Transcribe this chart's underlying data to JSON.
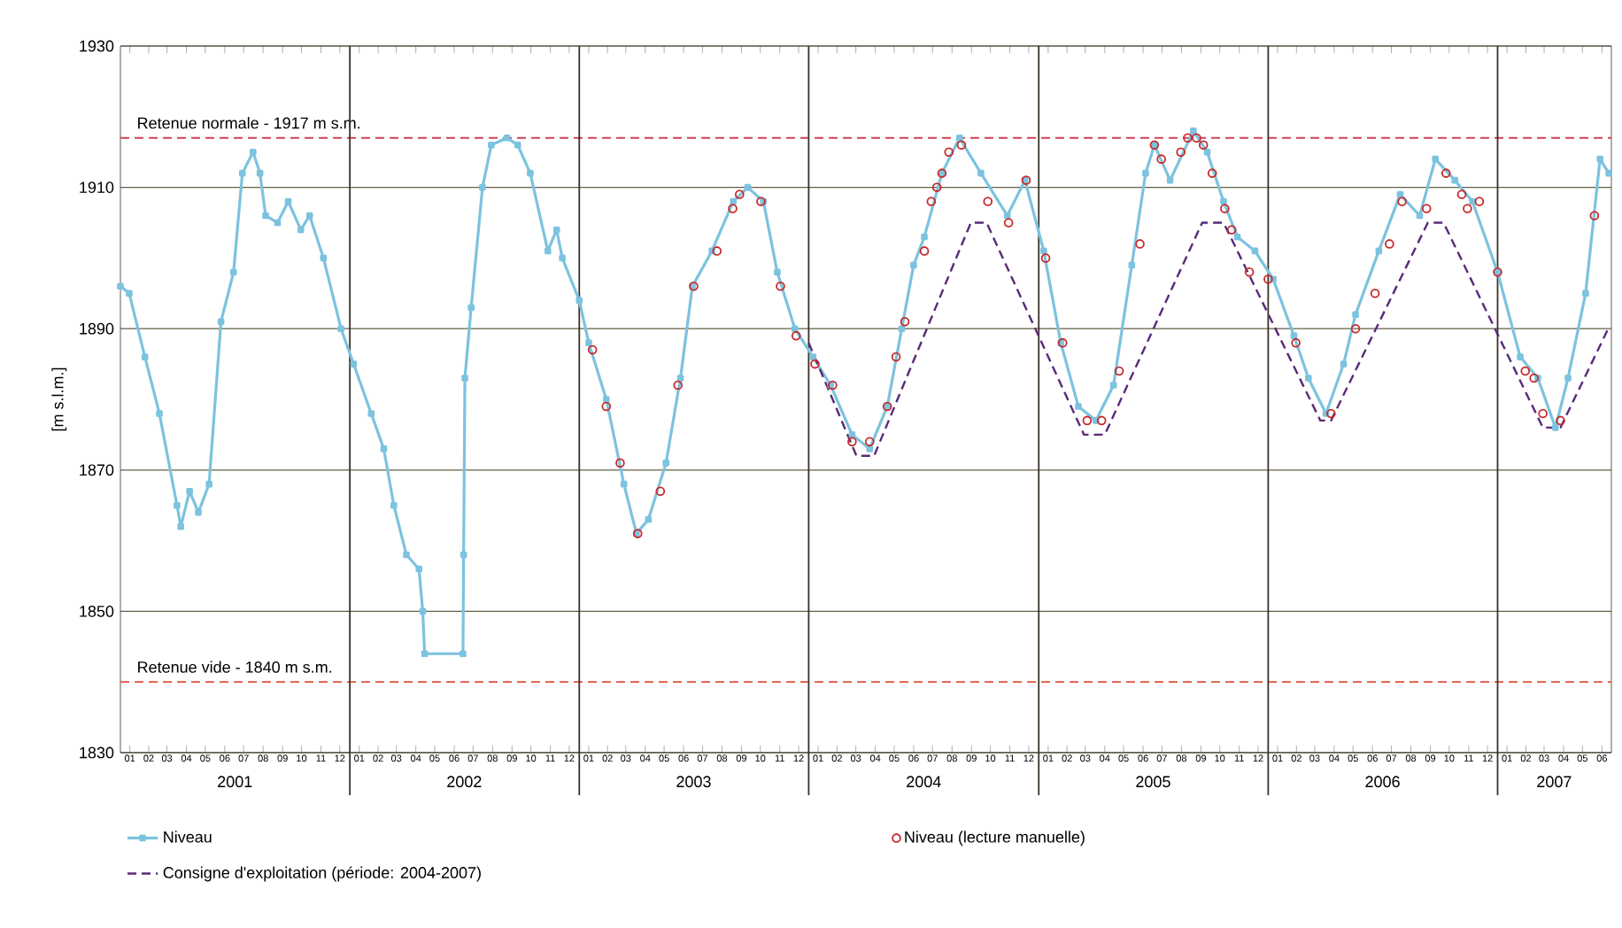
{
  "chart_data": {
    "type": "line",
    "ylabel": "[m s.l.m.]",
    "xlim": [
      "2001-01-01",
      "2007-07-01"
    ],
    "x2lim": [
      "2001-01-01",
      "2007-07-01"
    ],
    "ylim": [
      1830,
      1930
    ],
    "yticks": [
      1830,
      1850,
      1870,
      1890,
      1910,
      1930
    ],
    "xticks": [
      {
        "value": "2001-01-16",
        "label": "01"
      },
      {
        "value": "2001-02-15",
        "label": "02"
      },
      {
        "value": "2001-03-16",
        "label": "03"
      },
      {
        "value": "2001-04-16",
        "label": "04"
      },
      {
        "value": "2001-05-16",
        "label": "05"
      },
      {
        "value": "2001-06-16",
        "label": "06"
      },
      {
        "value": "2001-07-16",
        "label": "07"
      },
      {
        "value": "2001-08-16",
        "label": "08"
      },
      {
        "value": "2001-09-16",
        "label": "09"
      },
      {
        "value": "2001-10-16",
        "label": "10"
      },
      {
        "value": "2001-11-16",
        "label": "11"
      },
      {
        "value": "2001-12-16",
        "label": "12"
      },
      {
        "value": "2002-01-16",
        "label": "01"
      },
      {
        "value": "2002-02-15",
        "label": "02"
      },
      {
        "value": "2002-03-16",
        "label": "03"
      },
      {
        "value": "2002-04-16",
        "label": "04"
      },
      {
        "value": "2002-05-16",
        "label": "05"
      },
      {
        "value": "2002-06-16",
        "label": "06"
      },
      {
        "value": "2002-07-16",
        "label": "07"
      },
      {
        "value": "2002-08-16",
        "label": "08"
      },
      {
        "value": "2002-09-16",
        "label": "09"
      },
      {
        "value": "2002-10-16",
        "label": "10"
      },
      {
        "value": "2002-11-16",
        "label": "11"
      },
      {
        "value": "2002-12-16",
        "label": "12"
      },
      {
        "value": "2003-01-16",
        "label": "01"
      },
      {
        "value": "2003-02-15",
        "label": "02"
      },
      {
        "value": "2003-03-16",
        "label": "03"
      },
      {
        "value": "2003-04-16",
        "label": "04"
      },
      {
        "value": "2003-05-16",
        "label": "05"
      },
      {
        "value": "2003-06-16",
        "label": "06"
      },
      {
        "value": "2003-07-16",
        "label": "07"
      },
      {
        "value": "2003-08-16",
        "label": "08"
      },
      {
        "value": "2003-09-16",
        "label": "09"
      },
      {
        "value": "2003-10-16",
        "label": "10"
      },
      {
        "value": "2003-11-16",
        "label": "11"
      },
      {
        "value": "2003-12-16",
        "label": "12"
      },
      {
        "value": "2004-01-16",
        "label": "01"
      },
      {
        "value": "2004-02-15",
        "label": "02"
      },
      {
        "value": "2004-03-16",
        "label": "03"
      },
      {
        "value": "2004-04-16",
        "label": "04"
      },
      {
        "value": "2004-05-16",
        "label": "05"
      },
      {
        "value": "2004-06-16",
        "label": "06"
      },
      {
        "value": "2004-07-16",
        "label": "07"
      },
      {
        "value": "2004-08-16",
        "label": "08"
      },
      {
        "value": "2004-09-16",
        "label": "09"
      },
      {
        "value": "2004-10-16",
        "label": "10"
      },
      {
        "value": "2004-11-16",
        "label": "11"
      },
      {
        "value": "2004-12-16",
        "label": "12"
      },
      {
        "value": "2005-01-16",
        "label": "01"
      },
      {
        "value": "2005-02-15",
        "label": "02"
      },
      {
        "value": "2005-03-16",
        "label": "03"
      },
      {
        "value": "2005-04-16",
        "label": "04"
      },
      {
        "value": "2005-05-16",
        "label": "05"
      },
      {
        "value": "2005-06-16",
        "label": "06"
      },
      {
        "value": "2005-07-16",
        "label": "07"
      },
      {
        "value": "2005-08-16",
        "label": "08"
      },
      {
        "value": "2005-09-16",
        "label": "09"
      },
      {
        "value": "2005-10-16",
        "label": "10"
      },
      {
        "value": "2005-11-16",
        "label": "11"
      },
      {
        "value": "2005-12-16",
        "label": "12"
      },
      {
        "value": "2006-01-16",
        "label": "01"
      },
      {
        "value": "2006-02-15",
        "label": "02"
      },
      {
        "value": "2006-03-16",
        "label": "03"
      },
      {
        "value": "2006-04-16",
        "label": "04"
      },
      {
        "value": "2006-05-16",
        "label": "05"
      },
      {
        "value": "2006-06-16",
        "label": "06"
      },
      {
        "value": "2006-07-16",
        "label": "07"
      },
      {
        "value": "2006-08-16",
        "label": "08"
      },
      {
        "value": "2006-09-16",
        "label": "09"
      },
      {
        "value": "2006-10-16",
        "label": "10"
      },
      {
        "value": "2006-11-16",
        "label": "11"
      },
      {
        "value": "2006-12-16",
        "label": "12"
      },
      {
        "value": "2007-01-16",
        "label": "01"
      },
      {
        "value": "2007-02-15",
        "label": "02"
      },
      {
        "value": "2007-03-16",
        "label": "03"
      },
      {
        "value": "2007-04-16",
        "label": "04"
      },
      {
        "value": "2007-05-16",
        "label": "05"
      },
      {
        "value": "2007-06-16",
        "label": "06"
      }
    ],
    "x2ticks": [
      {
        "value": "2001-07-02",
        "label": "2001"
      },
      {
        "value": "2002-07-02",
        "label": "2002"
      },
      {
        "value": "2003-07-02",
        "label": "2003"
      },
      {
        "value": "2004-07-02",
        "label": "2004"
      },
      {
        "value": "2005-07-02",
        "label": "2005"
      },
      {
        "value": "2006-07-02",
        "label": "2006"
      },
      {
        "value": "2007-04-01",
        "label": "2007"
      }
    ],
    "grid": "y",
    "legend": "bottom",
    "ref_lines": [
      {
        "axis": "y",
        "value": 1917,
        "label": "Retenue normale - 1917 m s.m.",
        "color": "#d0405a",
        "line_style": "dashed"
      },
      {
        "axis": "y",
        "value": 1840,
        "label": "Retenue vide - 1840 m s.m.",
        "color": "#e0503a",
        "line_style": "dashed"
      },
      {
        "axis": "x",
        "value": "2002-01-01",
        "label": null,
        "color": "#3a3226"
      },
      {
        "axis": "x",
        "value": "2003-01-01",
        "label": null,
        "color": "#3a3226"
      },
      {
        "axis": "x",
        "value": "2004-01-01",
        "label": null,
        "color": "#3a3226"
      },
      {
        "axis": "x",
        "value": "2005-01-01",
        "label": null,
        "color": "#3a3226"
      },
      {
        "axis": "x",
        "value": "2006-01-01",
        "label": null,
        "color": "#3a3226"
      },
      {
        "axis": "x",
        "value": "2007-01-01",
        "label": null,
        "color": "#3a3226"
      }
    ],
    "series": [
      {
        "name": "Niveau",
        "color": "#7cc3df",
        "marker": "square",
        "line_style": "solid",
        "x": [
          "2001-01-01",
          "2001-01-15",
          "2001-02-09",
          "2001-03-04",
          "2001-04-01",
          "2001-04-07",
          "2001-04-21",
          "2001-05-05",
          "2001-05-22",
          "2001-06-10",
          "2001-06-30",
          "2001-07-14",
          "2001-07-31",
          "2001-08-11",
          "2001-08-20",
          "2001-09-08",
          "2001-09-25",
          "2001-10-15",
          "2001-10-29",
          "2001-11-20",
          "2001-12-18",
          "2002-01-07",
          "2002-02-04",
          "2002-02-24",
          "2002-03-12",
          "2002-04-01",
          "2002-04-21",
          "2002-04-27",
          "2002-04-30",
          "2002-06-30",
          "2002-07-01",
          "2002-07-03",
          "2002-07-13",
          "2002-07-31",
          "2002-08-14",
          "2002-09-08",
          "2002-09-25",
          "2002-10-15",
          "2002-11-12",
          "2002-11-26",
          "2002-12-05",
          "2003-01-01",
          "2003-01-16",
          "2003-02-13",
          "2003-03-13",
          "2003-04-02",
          "2003-04-21",
          "2003-05-19",
          "2003-06-11",
          "2003-06-30",
          "2003-07-31",
          "2003-09-03",
          "2003-09-26",
          "2003-10-21",
          "2003-11-12",
          "2003-12-10",
          "2004-01-08",
          "2004-02-05",
          "2004-03-10",
          "2004-04-07",
          "2004-05-05",
          "2004-05-28",
          "2004-06-16",
          "2004-07-03",
          "2004-07-31",
          "2004-08-28",
          "2004-10-01",
          "2004-11-12",
          "2004-12-10",
          "2005-01-09",
          "2005-02-05",
          "2005-03-05",
          "2005-04-02",
          "2005-04-30",
          "2005-05-29",
          "2005-06-20",
          "2005-07-04",
          "2005-07-29",
          "2005-09-04",
          "2005-09-26",
          "2005-10-22",
          "2005-11-13",
          "2005-12-11",
          "2006-01-09",
          "2006-02-11",
          "2006-03-06",
          "2006-04-03",
          "2006-05-01",
          "2006-05-20",
          "2006-06-26",
          "2006-07-30",
          "2006-08-30",
          "2006-09-24",
          "2006-10-25",
          "2006-11-22",
          "2007-01-01",
          "2007-02-06",
          "2007-03-06",
          "2007-04-03",
          "2007-04-23",
          "2007-05-21",
          "2007-06-13",
          "2007-06-27"
        ],
        "values": [
          1896,
          1895,
          1886,
          1878,
          1865,
          1862,
          1867,
          1864,
          1868,
          1891,
          1898,
          1912,
          1915,
          1912,
          1906,
          1905,
          1908,
          1904,
          1906,
          1900,
          1890,
          1885,
          1878,
          1873,
          1865,
          1858,
          1856,
          1850,
          1844,
          1844,
          1858,
          1883,
          1893,
          1910,
          1916,
          1917,
          1916,
          1912,
          1901,
          1904,
          1900,
          1894,
          1888,
          1880,
          1868,
          1861,
          1863,
          1871,
          1883,
          1896,
          1901,
          1908,
          1910,
          1908,
          1898,
          1890,
          1886,
          1882,
          1875,
          1873,
          1879,
          1890,
          1899,
          1903,
          1912,
          1917,
          1912,
          1906,
          1911,
          1901,
          1888,
          1879,
          1877,
          1882,
          1899,
          1912,
          1916,
          1911,
          1918,
          1915,
          1908,
          1903,
          1901,
          1897,
          1889,
          1883,
          1878,
          1885,
          1892,
          1901,
          1909,
          1906,
          1914,
          1911,
          1908,
          1898,
          1886,
          1883,
          1876,
          1883,
          1895,
          1914,
          1912
        ]
      },
      {
        "name": "Niveau (lecture manuelle)",
        "type": "scatter",
        "color": "#c8282a",
        "marker": "circle",
        "x": [
          "2003-01-22",
          "2003-02-13",
          "2003-03-07",
          "2003-04-04",
          "2003-05-10",
          "2003-06-07",
          "2003-07-02",
          "2003-08-08",
          "2003-09-02",
          "2003-09-13",
          "2003-10-17",
          "2003-11-17",
          "2003-12-12",
          "2004-01-11",
          "2004-02-08",
          "2004-03-10",
          "2004-04-07",
          "2004-05-05",
          "2004-05-19",
          "2004-06-02",
          "2004-07-03",
          "2004-07-14",
          "2004-07-23",
          "2004-07-31",
          "2004-08-11",
          "2004-08-31",
          "2004-10-12",
          "2004-11-14",
          "2004-12-12",
          "2005-01-12",
          "2005-02-08",
          "2005-03-19",
          "2005-04-11",
          "2005-05-09",
          "2005-06-11",
          "2005-07-04",
          "2005-07-15",
          "2005-08-15",
          "2005-08-26",
          "2005-09-09",
          "2005-09-20",
          "2005-10-04",
          "2005-10-24",
          "2005-11-04",
          "2005-12-02",
          "2006-01-01",
          "2006-02-14",
          "2006-04-11",
          "2006-05-20",
          "2006-06-20",
          "2006-07-13",
          "2006-08-02",
          "2006-09-10",
          "2006-10-11",
          "2006-11-05",
          "2006-11-14",
          "2006-12-03",
          "2007-01-01",
          "2007-02-14",
          "2007-02-28",
          "2007-03-14",
          "2007-04-11",
          "2007-06-04"
        ],
        "values": [
          1887,
          1879,
          1871,
          1861,
          1867,
          1882,
          1896,
          1901,
          1907,
          1909,
          1908,
          1896,
          1889,
          1885,
          1882,
          1874,
          1874,
          1879,
          1886,
          1891,
          1901,
          1908,
          1910,
          1912,
          1915,
          1916,
          1908,
          1905,
          1911,
          1900,
          1888,
          1877,
          1877,
          1884,
          1902,
          1916,
          1914,
          1915,
          1917,
          1917,
          1916,
          1912,
          1907,
          1904,
          1898,
          1897,
          1888,
          1878,
          1890,
          1895,
          1902,
          1908,
          1907,
          1912,
          1909,
          1907,
          1908,
          1898,
          1884,
          1883,
          1878,
          1877,
          1906
        ]
      },
      {
        "name": "Consigne d'exploitation (période: 2004-2007)",
        "color": "#5a2a78",
        "marker": "none",
        "line_style": "dashed",
        "x": [
          "2004-01-01",
          "2004-03-17",
          "2004-04-14",
          "2004-09-15",
          "2004-10-10",
          "2005-03-14",
          "2005-04-16",
          "2005-09-18",
          "2005-10-22",
          "2006-03-25",
          "2006-04-11",
          "2006-09-12",
          "2006-10-07",
          "2007-03-14",
          "2007-04-11",
          "2007-06-26"
        ],
        "values": [
          1888,
          1872,
          1872,
          1905,
          1905,
          1875,
          1875,
          1905,
          1905,
          1877,
          1877,
          1905,
          1905,
          1876,
          1876,
          1890
        ]
      }
    ]
  }
}
